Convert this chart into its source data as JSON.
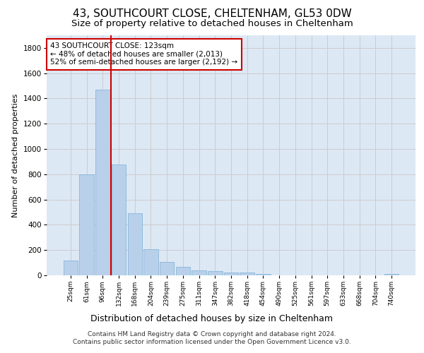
{
  "title1": "43, SOUTHCOURT CLOSE, CHELTENHAM, GL53 0DW",
  "title2": "Size of property relative to detached houses in Cheltenham",
  "xlabel": "Distribution of detached houses by size in Cheltenham",
  "ylabel": "Number of detached properties",
  "footnote1": "Contains HM Land Registry data © Crown copyright and database right 2024.",
  "footnote2": "Contains public sector information licensed under the Open Government Licence v3.0.",
  "categories": [
    "25sqm",
    "61sqm",
    "96sqm",
    "132sqm",
    "168sqm",
    "204sqm",
    "239sqm",
    "275sqm",
    "311sqm",
    "347sqm",
    "382sqm",
    "418sqm",
    "454sqm",
    "490sqm",
    "525sqm",
    "561sqm",
    "597sqm",
    "633sqm",
    "668sqm",
    "704sqm",
    "740sqm"
  ],
  "values": [
    120,
    800,
    1470,
    880,
    490,
    205,
    105,
    65,
    40,
    35,
    25,
    20,
    10,
    0,
    0,
    0,
    0,
    0,
    0,
    0,
    10
  ],
  "bar_color": "#b8d0ea",
  "bar_edge_color": "#7aafd4",
  "vline_color": "#cc0000",
  "annotation_text": "43 SOUTHCOURT CLOSE: 123sqm\n← 48% of detached houses are smaller (2,013)\n52% of semi-detached houses are larger (2,192) →",
  "annotation_box_color": "#ffffff",
  "annotation_box_edge_color": "#cc0000",
  "ylim": [
    0,
    1900
  ],
  "yticks": [
    0,
    200,
    400,
    600,
    800,
    1000,
    1200,
    1400,
    1600,
    1800
  ],
  "grid_color": "#cccccc",
  "bg_color": "#dde8f5",
  "title1_fontsize": 11,
  "title2_fontsize": 9.5,
  "xlabel_fontsize": 9,
  "ylabel_fontsize": 8,
  "footnote_fontsize": 6.5,
  "annotation_fontsize": 7.5
}
